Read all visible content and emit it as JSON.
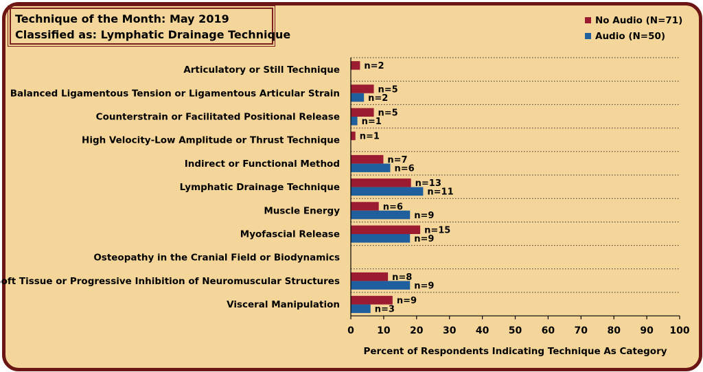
{
  "title_lines": [
    "Technique of the Month: May 2019",
    "Classified as: Lymphatic Drainage Technique"
  ],
  "chart_data": {
    "type": "bar",
    "orientation": "horizontal",
    "xlabel": "Percent of Respondents Indicating Technique  As Category",
    "xlim": [
      0,
      100
    ],
    "xticks": [
      0,
      10,
      20,
      30,
      40,
      50,
      60,
      70,
      80,
      90,
      100
    ],
    "legend_position": "top-right",
    "gridlines": "horizontal-dotted",
    "categories": [
      "Articulatory or Still Technique",
      "Balanced Ligamentous Tension or Ligamentous Articular Strain",
      "Counterstrain or Facilitated Positional Release",
      "High Velocity-Low Amplitude or Thrust Technique",
      "Indirect or Functional Method",
      "Lymphatic Drainage Technique",
      "Muscle Energy",
      "Myofascial Release",
      "Osteopathy in the Cranial Field or Biodynamics",
      "Soft Tissue or Progressive Inhibition of Neuromuscular Structures",
      "Visceral Manipulation"
    ],
    "series": [
      {
        "name": "No Audio (N=71)",
        "color": "#9b1b30",
        "values": [
          2.8,
          7.0,
          7.0,
          1.4,
          9.9,
          18.3,
          8.5,
          21.1,
          0,
          11.3,
          12.7
        ],
        "labels": [
          "n=2",
          "n=5",
          "n=5",
          "n=1",
          "n=7",
          "n=13",
          "n=6",
          "n=15",
          "",
          "n=8",
          "n=9"
        ]
      },
      {
        "name": "Audio (N=50)",
        "color": "#1f5f9e",
        "values": [
          0,
          4.0,
          2.0,
          0,
          12.0,
          22.0,
          18.0,
          18.0,
          0,
          18.0,
          6.0
        ],
        "labels": [
          "",
          "n=2",
          "n=1",
          "",
          "n=6",
          "n=11",
          "n=9",
          "n=9",
          "",
          "n=9",
          "n=3"
        ]
      }
    ]
  }
}
